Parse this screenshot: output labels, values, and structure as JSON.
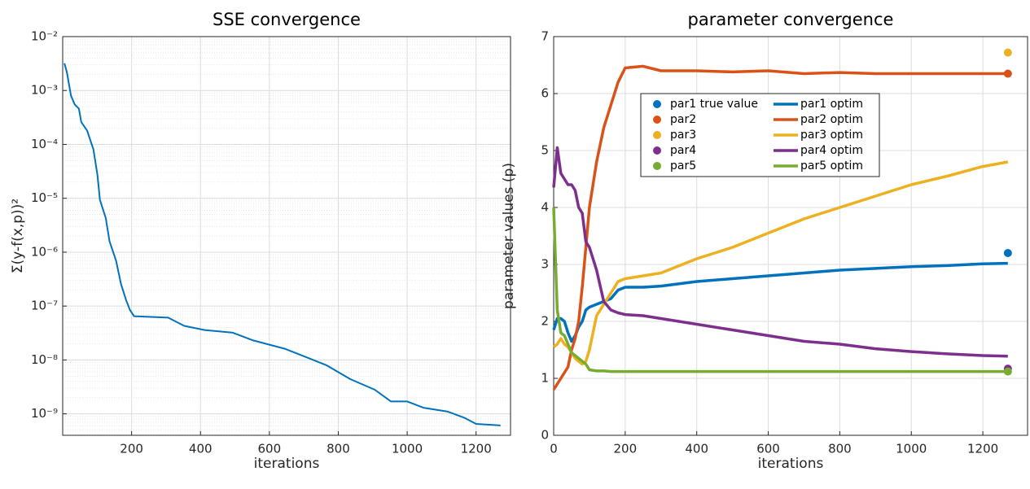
{
  "chart_data": [
    {
      "type": "line",
      "title": "SSE convergence",
      "xlabel": "iterations",
      "ylabel": "Σ(y-f(x,p))²",
      "log_y": true,
      "grid": true,
      "minor_grid": true,
      "xlim": [
        0,
        1300
      ],
      "xticks": [
        200,
        400,
        600,
        800,
        1000,
        1200
      ],
      "ylim": [
        4e-10,
        0.01
      ],
      "yticks": [
        {
          "value": 0.01,
          "label": "10⁻²"
        },
        {
          "value": 0.001,
          "label": "10⁻³"
        },
        {
          "value": 0.0001,
          "label": "10⁻⁴"
        },
        {
          "value": 1e-05,
          "label": "10⁻⁵"
        },
        {
          "value": 1e-06,
          "label": "10⁻⁶"
        },
        {
          "value": 1e-07,
          "label": "10⁻⁷"
        },
        {
          "value": 1e-08,
          "label": "10⁻⁸"
        },
        {
          "value": 1e-09,
          "label": "10⁻⁹"
        }
      ],
      "x": [
        5,
        12,
        24,
        35,
        47,
        54,
        71,
        89,
        101,
        108,
        125,
        136,
        155,
        169,
        184,
        195,
        207,
        306,
        353,
        412,
        494,
        553,
        647,
        765,
        835,
        906,
        953,
        1000,
        1047,
        1118,
        1165,
        1200,
        1271
      ],
      "series": [
        {
          "color": "#0072bd",
          "values": [
            0.0032,
            0.0022,
            0.0008,
            0.00055,
            0.00046,
            0.00026,
            0.00018,
            8.1e-05,
            2.7e-05,
            9.4e-06,
            4.3e-06,
            1.6e-06,
            6.9e-07,
            2.6e-07,
            1.3e-07,
            8.5e-08,
            6.5e-08,
            6.1e-08,
            4.3e-08,
            3.6e-08,
            3.2e-08,
            2.3e-08,
            1.6e-08,
            8e-09,
            4.4e-09,
            2.8e-09,
            1.7e-09,
            1.7e-09,
            1.3e-09,
            1.1e-09,
            8.5e-10,
            6.5e-10,
            6.1e-10
          ]
        }
      ]
    },
    {
      "type": "line",
      "title": "parameter convergence",
      "xlabel": "iterations",
      "ylabel": "parameter values (p)",
      "log_y": false,
      "grid": true,
      "minor_grid": false,
      "xlim": [
        0,
        1325
      ],
      "xticks": [
        0,
        200,
        400,
        600,
        800,
        1000,
        1200
      ],
      "ylim": [
        0,
        7
      ],
      "yticks": [
        0,
        1,
        2,
        3,
        4,
        5,
        6,
        7
      ],
      "legend": "upper-center",
      "x": [
        0,
        10,
        20,
        30,
        40,
        50,
        60,
        70,
        80,
        90,
        100,
        120,
        140,
        160,
        180,
        200,
        250,
        300,
        400,
        500,
        600,
        700,
        800,
        900,
        1000,
        1100,
        1200,
        1270
      ],
      "series": [
        {
          "name": "par1 true value",
          "type": "scatter",
          "color": "#0072bd",
          "x": [
            1270
          ],
          "values": [
            3.2
          ]
        },
        {
          "name": "par2",
          "type": "scatter",
          "color": "#d95319",
          "x": [
            1270
          ],
          "values": [
            6.35
          ]
        },
        {
          "name": "par3",
          "type": "scatter",
          "color": "#edb120",
          "x": [
            1270
          ],
          "values": [
            6.72
          ]
        },
        {
          "name": "par4",
          "type": "scatter",
          "color": "#7e2f8e",
          "x": [
            1270
          ],
          "values": [
            1.17
          ]
        },
        {
          "name": "par5",
          "type": "scatter",
          "color": "#77ac30",
          "x": [
            1270
          ],
          "values": [
            1.12
          ]
        },
        {
          "name": "par1 optim",
          "type": "line",
          "color": "#0072bd",
          "values": [
            1.85,
            2.05,
            2.05,
            2.0,
            1.8,
            1.65,
            1.75,
            1.9,
            2.0,
            2.2,
            2.25,
            2.3,
            2.35,
            2.4,
            2.55,
            2.6,
            2.6,
            2.62,
            2.7,
            2.75,
            2.8,
            2.85,
            2.9,
            2.93,
            2.96,
            2.98,
            3.01,
            3.02
          ]
        },
        {
          "name": "par2 optim",
          "type": "line",
          "color": "#d95319",
          "values": [
            0.8,
            0.9,
            1.0,
            1.1,
            1.2,
            1.5,
            1.7,
            2.0,
            2.6,
            3.3,
            4.0,
            4.8,
            5.4,
            5.8,
            6.2,
            6.45,
            6.48,
            6.4,
            6.4,
            6.38,
            6.4,
            6.35,
            6.37,
            6.35,
            6.35,
            6.35,
            6.35,
            6.35
          ]
        },
        {
          "name": "par3  optim",
          "type": "line",
          "color": "#edb120",
          "values": [
            1.55,
            1.6,
            1.7,
            1.6,
            1.55,
            1.45,
            1.35,
            1.3,
            1.25,
            1.3,
            1.5,
            2.1,
            2.3,
            2.5,
            2.7,
            2.75,
            2.8,
            2.85,
            3.1,
            3.3,
            3.55,
            3.8,
            4.0,
            4.2,
            4.4,
            4.55,
            4.72,
            4.8
          ]
        },
        {
          "name": "par4 optim",
          "type": "line",
          "color": "#7e2f8e",
          "values": [
            4.35,
            5.05,
            4.6,
            4.5,
            4.4,
            4.4,
            4.3,
            4.0,
            3.9,
            3.4,
            3.3,
            2.9,
            2.35,
            2.2,
            2.15,
            2.12,
            2.1,
            2.05,
            1.95,
            1.85,
            1.75,
            1.65,
            1.6,
            1.52,
            1.47,
            1.43,
            1.4,
            1.39
          ]
        },
        {
          "name": "par5 optim",
          "type": "line",
          "color": "#77ac30",
          "values": [
            4.0,
            2.2,
            1.8,
            1.75,
            1.6,
            1.45,
            1.4,
            1.35,
            1.3,
            1.25,
            1.15,
            1.13,
            1.13,
            1.12,
            1.12,
            1.12,
            1.12,
            1.12,
            1.12,
            1.12,
            1.12,
            1.12,
            1.12,
            1.12,
            1.12,
            1.12,
            1.12,
            1.12
          ]
        }
      ]
    }
  ]
}
